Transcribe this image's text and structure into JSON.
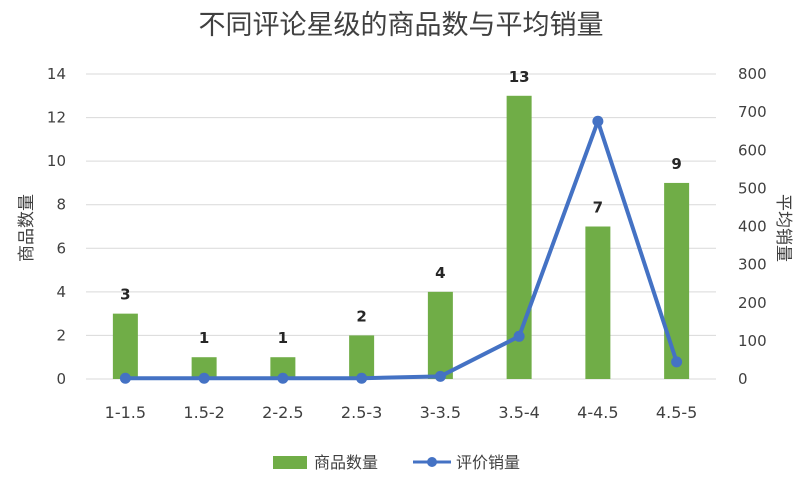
{
  "chart_data": {
    "type": "bar",
    "title": "不同评论星级的商品数与平均销量",
    "categories": [
      "1-1.5",
      "1.5-2",
      "2-2.5",
      "2.5-3",
      "3-3.5",
      "3.5-4",
      "4-4.5",
      "4.5-5"
    ],
    "series": [
      {
        "name": "商品数量",
        "type": "bar",
        "axis": "left",
        "color": "#70ad47",
        "values": [
          3,
          1,
          1,
          2,
          4,
          13,
          7,
          9
        ],
        "data_labels": [
          "3",
          "1",
          "1",
          "2",
          "4",
          "13",
          "7",
          "9"
        ]
      },
      {
        "name": "评价销量",
        "type": "line",
        "axis": "right",
        "color": "#4472c4",
        "marker": "circle",
        "values": [
          2,
          2,
          2,
          2,
          7,
          112,
          676,
          45
        ]
      }
    ],
    "ylabel": "商品数量",
    "y2label": "平均销量",
    "ylim": [
      0,
      14
    ],
    "y2lim": [
      0,
      800
    ],
    "yticks": [
      "0",
      "2",
      "4",
      "6",
      "8",
      "10",
      "12",
      "14"
    ],
    "y2ticks": [
      "0",
      "100",
      "200",
      "300",
      "400",
      "500",
      "600",
      "700",
      "800"
    ],
    "grid": true,
    "legend": "bottom"
  }
}
